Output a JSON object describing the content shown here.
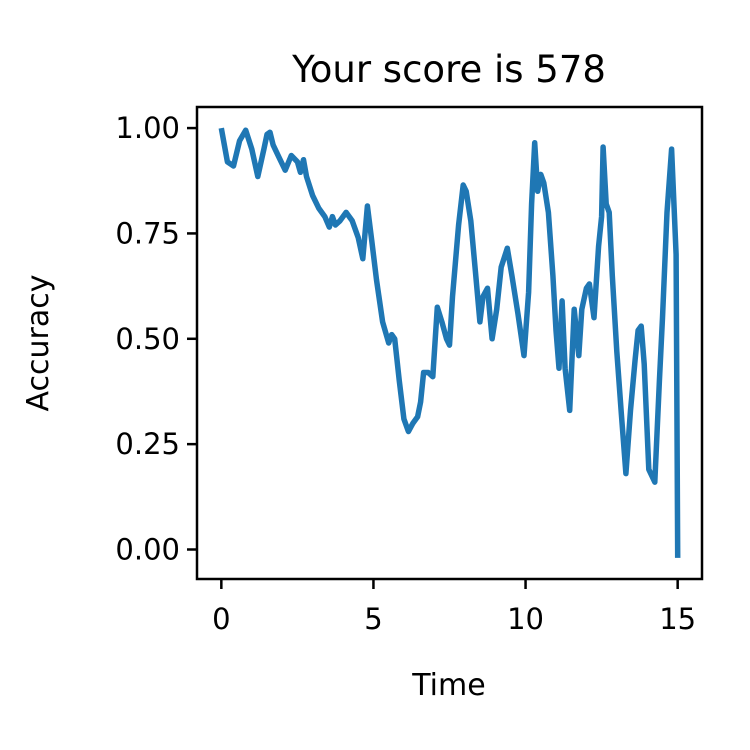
{
  "chart_data": {
    "type": "line",
    "title": "Your score is 578",
    "xlabel": "Time",
    "ylabel": "Accuracy",
    "xlim": [
      -0.8,
      15.8
    ],
    "ylim": [
      -0.07,
      1.05
    ],
    "xticks": [
      0,
      5,
      10,
      15
    ],
    "xtick_labels": [
      "0",
      "5",
      "10",
      "15"
    ],
    "yticks": [
      0.0,
      0.25,
      0.5,
      0.75,
      1.0
    ],
    "ytick_labels": [
      "0.00",
      "0.25",
      "0.50",
      "0.75",
      "1.00"
    ],
    "grid": false,
    "legend": "none",
    "line_color": "#1f77b4",
    "series": [
      {
        "x": [
          0.0,
          0.2,
          0.4,
          0.6,
          0.8,
          1.0,
          1.2,
          1.4,
          1.5,
          1.6,
          1.7,
          1.9,
          2.1,
          2.3,
          2.5,
          2.6,
          2.7,
          2.8,
          3.0,
          3.2,
          3.4,
          3.55,
          3.65,
          3.75,
          3.9,
          4.1,
          4.3,
          4.5,
          4.65,
          4.8,
          4.95,
          5.1,
          5.3,
          5.5,
          5.6,
          5.7,
          5.85,
          6.0,
          6.15,
          6.3,
          6.45,
          6.55,
          6.65,
          6.8,
          6.95,
          7.1,
          7.25,
          7.4,
          7.5,
          7.6,
          7.8,
          7.95,
          8.05,
          8.2,
          8.35,
          8.5,
          8.6,
          8.75,
          8.9,
          9.05,
          9.2,
          9.4,
          9.55,
          9.75,
          9.95,
          10.1,
          10.2,
          10.3,
          10.4,
          10.5,
          10.6,
          10.75,
          10.9,
          11.0,
          11.1,
          11.2,
          11.3,
          11.45,
          11.6,
          11.75,
          11.85,
          12.0,
          12.1,
          12.25,
          12.4,
          12.5,
          12.55,
          12.65,
          12.75,
          12.85,
          13.0,
          13.15,
          13.3,
          13.45,
          13.6,
          13.7,
          13.8,
          13.9,
          14.05,
          14.25,
          14.4,
          14.5,
          14.65,
          14.8,
          14.95,
          15.0
        ],
        "y": [
          1.0,
          0.92,
          0.91,
          0.97,
          0.995,
          0.95,
          0.885,
          0.95,
          0.985,
          0.99,
          0.96,
          0.93,
          0.9,
          0.935,
          0.92,
          0.895,
          0.925,
          0.885,
          0.84,
          0.81,
          0.79,
          0.765,
          0.79,
          0.77,
          0.78,
          0.8,
          0.78,
          0.74,
          0.69,
          0.815,
          0.73,
          0.64,
          0.54,
          0.49,
          0.51,
          0.5,
          0.4,
          0.31,
          0.28,
          0.3,
          0.315,
          0.35,
          0.42,
          0.42,
          0.41,
          0.575,
          0.54,
          0.5,
          0.485,
          0.6,
          0.77,
          0.865,
          0.85,
          0.78,
          0.66,
          0.54,
          0.6,
          0.62,
          0.5,
          0.57,
          0.67,
          0.715,
          0.65,
          0.56,
          0.46,
          0.61,
          0.82,
          0.965,
          0.85,
          0.89,
          0.87,
          0.8,
          0.65,
          0.52,
          0.43,
          0.59,
          0.43,
          0.33,
          0.57,
          0.46,
          0.57,
          0.62,
          0.63,
          0.55,
          0.72,
          0.79,
          0.955,
          0.82,
          0.8,
          0.65,
          0.47,
          0.32,
          0.18,
          0.33,
          0.45,
          0.52,
          0.53,
          0.44,
          0.19,
          0.16,
          0.4,
          0.55,
          0.8,
          0.95,
          0.7,
          -0.02
        ]
      }
    ]
  }
}
